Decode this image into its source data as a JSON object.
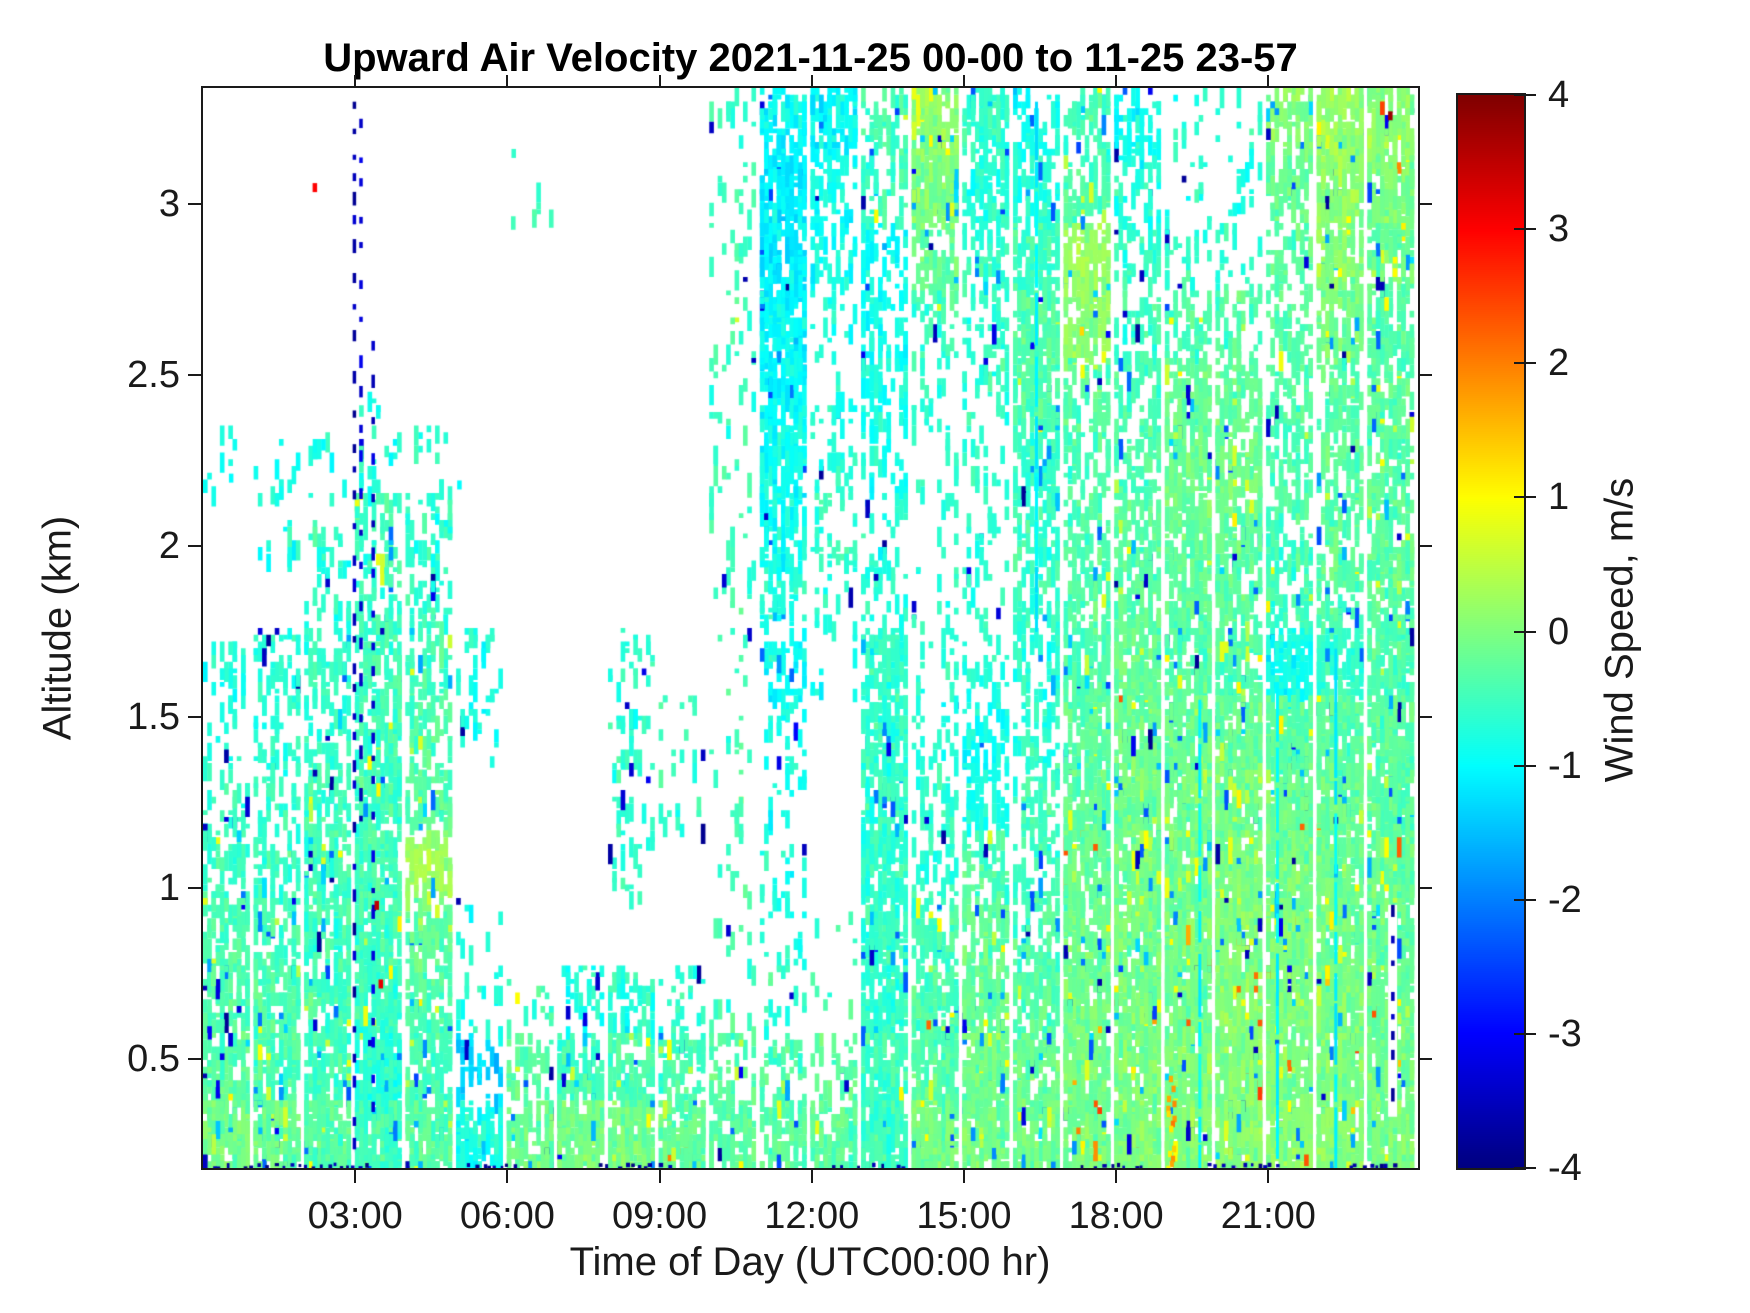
{
  "title": "Upward Air Velocity 2021-11-25 00-00 to 11-25 23-57",
  "x_axis": {
    "label": "Time of Day (UTC00:00 hr)",
    "tick_labels": [
      "03:00",
      "06:00",
      "09:00",
      "12:00",
      "15:00",
      "18:00",
      "21:00"
    ],
    "tick_hours": [
      3,
      6,
      9,
      12,
      15,
      18,
      21
    ],
    "range_hours": [
      0,
      23.95
    ]
  },
  "y_axis": {
    "label": "Altitude (km)",
    "tick_labels": [
      "0.5",
      "1",
      "1.5",
      "2",
      "2.5",
      "3"
    ],
    "tick_values": [
      0.5,
      1,
      1.5,
      2,
      2.5,
      3
    ],
    "range_km": [
      0.18,
      3.34
    ]
  },
  "colorbar": {
    "label": "Wind Speed, m/s",
    "tick_labels": [
      "4",
      "3",
      "2",
      "1",
      "0",
      "-1",
      "-2",
      "-3",
      "-4"
    ],
    "tick_values": [
      4,
      3,
      2,
      1,
      0,
      -1,
      -2,
      -3,
      -4
    ],
    "range": [
      -4,
      4
    ],
    "colormap": "jet",
    "palette_samples": {
      "plus4_dark_red": "#800000",
      "plus3_red": "#ff0000",
      "plus2_orange": "#ff8000",
      "plus1_yellow": "#ffff00",
      "zero_green": "#80ff80",
      "minus1_cyan": "#00ffff",
      "minus2_blue": "#0080ff",
      "minus3_deep_blue": "#0040ff",
      "minus4_navy": "#000080"
    }
  },
  "figure_style": {
    "background": "#ffffff",
    "axis_color": "#1a1a1a",
    "no_data_color": "#ffffff"
  },
  "chart_data": {
    "type": "heatmap",
    "x_unit": "hour of day (UTC)",
    "y_unit": "altitude (km)",
    "value_unit": "m/s (upward air velocity)",
    "grid_note": "coarse 1-hour x 0.2-km summary of the NaN-masked Doppler pcolor field; coverage_fraction = fraction of pixels with data in each bin, mean_wind_ms = typical wind speed of those pixels",
    "col_start_hours": [
      0,
      1,
      2,
      3,
      4,
      5,
      6,
      7,
      8,
      9,
      10,
      11,
      12,
      13,
      14,
      15,
      16,
      17,
      18,
      19,
      20,
      21,
      22,
      23
    ],
    "row_center_alt_km": [
      3.24,
      3.04,
      2.85,
      2.65,
      2.45,
      2.25,
      2.06,
      1.86,
      1.66,
      1.46,
      1.27,
      1.07,
      0.87,
      0.67,
      0.48,
      0.28
    ],
    "coverage_fraction": [
      [
        0,
        0,
        0,
        0,
        0,
        0,
        0,
        0,
        0,
        0,
        0.07,
        0.5,
        0.55,
        0.3,
        0.8,
        0.55,
        0.35,
        0.3,
        0.3,
        0.06,
        0.06,
        0.5,
        0.85,
        0.8
      ],
      [
        0,
        0,
        0,
        0,
        0,
        0,
        0.04,
        0,
        0,
        0,
        0.07,
        0.75,
        0.3,
        0.3,
        0.75,
        0.45,
        0.4,
        0.35,
        0.25,
        0.08,
        0.08,
        0.4,
        0.8,
        0.75
      ],
      [
        0,
        0,
        0,
        0,
        0,
        0,
        0,
        0,
        0,
        0,
        0.07,
        0.8,
        0.2,
        0.3,
        0.45,
        0.3,
        0.6,
        0.55,
        0.25,
        0.15,
        0.12,
        0.3,
        0.6,
        0.55
      ],
      [
        0,
        0,
        0,
        0,
        0,
        0,
        0,
        0,
        0,
        0,
        0.07,
        0.8,
        0.12,
        0.35,
        0.2,
        0.2,
        0.7,
        0.6,
        0.3,
        0.3,
        0.25,
        0.3,
        0.5,
        0.45
      ],
      [
        0,
        0,
        0,
        0.03,
        0,
        0,
        0,
        0,
        0,
        0,
        0.07,
        0.7,
        0.1,
        0.3,
        0.1,
        0.15,
        0.6,
        0.4,
        0.35,
        0.55,
        0.5,
        0.3,
        0.4,
        0.45
      ],
      [
        0.05,
        0.06,
        0.05,
        0.1,
        0.08,
        0,
        0,
        0,
        0,
        0,
        0.07,
        0.55,
        0.15,
        0.2,
        0.08,
        0.1,
        0.45,
        0.3,
        0.4,
        0.65,
        0.6,
        0.3,
        0.35,
        0.5
      ],
      [
        0,
        0.08,
        0.1,
        0.3,
        0.25,
        0,
        0,
        0,
        0,
        0,
        0.07,
        0.45,
        0.2,
        0.15,
        0.05,
        0.1,
        0.35,
        0.3,
        0.5,
        0.6,
        0.5,
        0.35,
        0.4,
        0.55
      ],
      [
        0,
        0,
        0.15,
        0.3,
        0.25,
        0,
        0,
        0,
        0,
        0,
        0.07,
        0.3,
        0.1,
        0.2,
        0.08,
        0.1,
        0.3,
        0.35,
        0.6,
        0.55,
        0.45,
        0.4,
        0.45,
        0.6
      ],
      [
        0.15,
        0.25,
        0.3,
        0.4,
        0.3,
        0.12,
        0,
        0,
        0.12,
        0,
        0.05,
        0.3,
        0.05,
        0.65,
        0.1,
        0.15,
        0.3,
        0.5,
        0.75,
        0.7,
        0.6,
        0.75,
        0.6,
        0.7
      ],
      [
        0.1,
        0.2,
        0.3,
        0.5,
        0.3,
        0.1,
        0,
        0,
        0.12,
        0.08,
        0.05,
        0.15,
        0,
        0.65,
        0.15,
        0.3,
        0.3,
        0.6,
        0.85,
        0.85,
        0.8,
        0.85,
        0.7,
        0.8
      ],
      [
        0.2,
        0.25,
        0.4,
        0.6,
        0.45,
        0,
        0,
        0,
        0.12,
        0.08,
        0.05,
        0.1,
        0,
        0.65,
        0.2,
        0.4,
        0.35,
        0.7,
        0.9,
        0.9,
        0.9,
        0.9,
        0.85,
        0.85
      ],
      [
        0.3,
        0.3,
        0.5,
        0.7,
        0.5,
        0,
        0,
        0,
        0.12,
        0,
        0.05,
        0.1,
        0,
        0.65,
        0.25,
        0.35,
        0.3,
        0.75,
        0.92,
        0.93,
        0.95,
        0.95,
        0.9,
        0.9
      ],
      [
        0.5,
        0.4,
        0.6,
        0.8,
        0.45,
        0.05,
        0,
        0,
        0,
        0,
        0.05,
        0.1,
        0.03,
        0.65,
        0.4,
        0.5,
        0.35,
        0.8,
        0.95,
        0.95,
        0.97,
        0.97,
        0.95,
        0.9
      ],
      [
        0.6,
        0.5,
        0.6,
        0.85,
        0.4,
        0.1,
        0.08,
        0.2,
        0.3,
        0.15,
        0.05,
        0.1,
        0.03,
        0.65,
        0.6,
        0.7,
        0.5,
        0.85,
        0.95,
        0.95,
        0.97,
        0.97,
        0.95,
        0.9
      ],
      [
        0.7,
        0.6,
        0.7,
        0.9,
        0.5,
        0.25,
        0.3,
        0.55,
        0.6,
        0.45,
        0.25,
        0.3,
        0.2,
        0.65,
        0.8,
        0.85,
        0.6,
        0.9,
        0.95,
        0.97,
        0.97,
        0.97,
        0.95,
        0.92
      ],
      [
        0.85,
        0.8,
        0.9,
        0.95,
        0.8,
        0.55,
        0.6,
        0.8,
        0.85,
        0.8,
        0.6,
        0.55,
        0.5,
        0.85,
        0.9,
        0.9,
        0.85,
        0.95,
        0.97,
        0.97,
        0.97,
        0.97,
        0.95,
        0.95
      ]
    ],
    "mean_wind_ms": [
      [
        null,
        null,
        null,
        null,
        null,
        null,
        null,
        null,
        null,
        null,
        -0.5,
        -1.0,
        -1.0,
        -0.4,
        0.1,
        -0.6,
        -0.8,
        -0.5,
        -0.9,
        -0.7,
        -0.7,
        0.0,
        0.15,
        0.1
      ],
      [
        null,
        null,
        null,
        null,
        null,
        null,
        -0.5,
        null,
        null,
        null,
        -0.5,
        -1.1,
        -0.9,
        -0.5,
        0.0,
        -0.7,
        -0.7,
        -0.4,
        -0.7,
        -0.7,
        -0.7,
        -0.2,
        0.1,
        0.0
      ],
      [
        null,
        null,
        null,
        null,
        null,
        null,
        null,
        null,
        null,
        null,
        -0.5,
        -1.1,
        -0.9,
        -0.9,
        -0.2,
        -0.6,
        -0.5,
        0.2,
        -0.6,
        -0.6,
        -0.6,
        -0.3,
        0.0,
        -0.2
      ],
      [
        null,
        null,
        null,
        null,
        null,
        null,
        null,
        null,
        null,
        null,
        -0.5,
        -1.0,
        -0.8,
        -0.9,
        -0.5,
        -0.6,
        -0.3,
        0.1,
        -0.5,
        -0.4,
        -0.4,
        -0.3,
        -0.1,
        -0.3
      ],
      [
        null,
        null,
        null,
        -0.8,
        null,
        null,
        null,
        null,
        null,
        null,
        -0.5,
        -1.0,
        -0.8,
        -0.8,
        -0.6,
        -0.6,
        -0.4,
        -0.3,
        -0.4,
        -0.2,
        -0.2,
        -0.4,
        -0.3,
        -0.3
      ],
      [
        -0.9,
        -0.9,
        -0.8,
        -0.7,
        -0.7,
        null,
        null,
        null,
        null,
        null,
        -0.5,
        -0.9,
        -0.7,
        -0.8,
        -0.6,
        -0.6,
        -0.6,
        -0.4,
        -0.4,
        -0.15,
        -0.15,
        -0.4,
        -0.3,
        -0.3
      ],
      [
        null,
        -0.8,
        -0.7,
        -0.5,
        -0.6,
        null,
        null,
        null,
        null,
        null,
        -0.5,
        -0.9,
        -0.6,
        -0.7,
        -0.6,
        -0.6,
        -0.6,
        -0.4,
        -0.3,
        -0.2,
        -0.25,
        -0.45,
        -0.3,
        -0.3
      ],
      [
        null,
        null,
        -0.7,
        -0.5,
        -0.6,
        null,
        null,
        null,
        null,
        null,
        -0.5,
        -0.8,
        -0.7,
        -0.7,
        -0.6,
        -0.6,
        -0.6,
        -0.4,
        -0.3,
        -0.3,
        -0.3,
        -0.5,
        -0.35,
        -0.3
      ],
      [
        -0.8,
        -0.7,
        -0.6,
        -0.5,
        -0.5,
        -0.8,
        null,
        null,
        -0.6,
        null,
        -0.5,
        -0.9,
        -0.8,
        -0.6,
        -0.7,
        -0.7,
        -0.7,
        -0.4,
        -0.2,
        -0.3,
        -0.4,
        -0.9,
        -0.6,
        -0.4
      ],
      [
        -0.7,
        -0.7,
        -0.6,
        -0.5,
        -0.4,
        -0.8,
        null,
        null,
        -0.6,
        -0.6,
        -0.5,
        -0.8,
        null,
        -0.6,
        -0.7,
        -0.9,
        -0.7,
        -0.3,
        -0.15,
        -0.2,
        -0.2,
        -0.3,
        -0.3,
        -0.3
      ],
      [
        -0.6,
        -0.6,
        -0.55,
        -0.5,
        -0.3,
        null,
        null,
        null,
        -0.6,
        -0.6,
        -0.5,
        -0.8,
        null,
        -0.6,
        -0.6,
        -0.8,
        -0.5,
        -0.25,
        -0.1,
        -0.15,
        -0.1,
        -0.15,
        -0.2,
        -0.3
      ],
      [
        -0.5,
        -0.5,
        -0.5,
        -0.45,
        0.25,
        null,
        null,
        null,
        -0.6,
        null,
        -0.5,
        -0.8,
        null,
        -0.6,
        -0.6,
        -0.4,
        -0.5,
        -0.2,
        -0.1,
        -0.1,
        -0.05,
        -0.1,
        -0.15,
        -0.2
      ],
      [
        -0.4,
        -0.45,
        -0.5,
        -0.5,
        -0.2,
        -0.8,
        null,
        null,
        null,
        null,
        -0.5,
        -0.8,
        -0.5,
        -0.6,
        -0.5,
        -0.3,
        -0.4,
        -0.15,
        -0.1,
        -0.1,
        0.0,
        0.0,
        -0.1,
        -0.2
      ],
      [
        -0.35,
        -0.4,
        -0.45,
        -0.55,
        -0.4,
        -0.7,
        -0.5,
        -0.8,
        -0.7,
        -0.6,
        -0.5,
        -0.6,
        -0.5,
        -0.6,
        -0.4,
        -0.2,
        -0.3,
        -0.1,
        -0.05,
        -0.1,
        0.0,
        0.0,
        -0.05,
        -0.15
      ],
      [
        -0.3,
        -0.4,
        -0.5,
        -0.7,
        -0.45,
        -1.3,
        -0.3,
        -0.5,
        -0.4,
        -0.45,
        -0.35,
        -0.4,
        -0.3,
        -0.55,
        -0.3,
        -0.15,
        -0.2,
        -0.1,
        -0.05,
        -0.05,
        0.0,
        0.0,
        0.0,
        -0.1
      ],
      [
        -0.1,
        -0.2,
        -0.3,
        -0.5,
        -0.3,
        -0.8,
        -0.2,
        -0.1,
        -0.1,
        -0.2,
        -0.3,
        -0.3,
        -0.3,
        -0.5,
        -0.1,
        -0.1,
        -0.1,
        -0.05,
        0.0,
        0.0,
        0.05,
        0.05,
        0.0,
        -0.05
      ]
    ],
    "features": [
      {
        "type": "navy_dash_column",
        "t": 2.95,
        "alt_min": 0.2,
        "alt_max": 3.3,
        "value": -3.6
      },
      {
        "type": "navy_dash_column",
        "t": 3.08,
        "alt_min": 1.2,
        "alt_max": 3.25,
        "value": -3.4
      },
      {
        "type": "navy_dash_column",
        "t": 3.32,
        "alt_min": 0.35,
        "alt_max": 2.6,
        "value": -3.4
      },
      {
        "type": "navy_dash_column",
        "t": 23.42,
        "alt_min": 0.33,
        "alt_max": 0.95,
        "value": -3.6,
        "white_gap": true
      },
      {
        "type": "cyan_streak",
        "t": 16.4,
        "alt_min": 1.76,
        "alt_max": 3.3,
        "value": -1.1
      },
      {
        "type": "cyan_streak",
        "t": 19.62,
        "alt_min": 0.2,
        "alt_max": 1.55,
        "value": -1.0
      },
      {
        "type": "cyan_streak",
        "t": 21.15,
        "alt_min": 0.2,
        "alt_max": 1.6,
        "value": -1.0
      },
      {
        "type": "cyan_streak",
        "t": 22.3,
        "alt_min": 0.3,
        "alt_max": 1.7,
        "value": -1.1
      },
      {
        "type": "warm_column",
        "t": 19.05,
        "alt_min": 0.18,
        "alt_max": 0.45,
        "value": 1.6
      },
      {
        "type": "speck",
        "t": 3.42,
        "alt": 0.95,
        "value": 3.5
      },
      {
        "type": "speck",
        "t": 3.5,
        "alt": 0.72,
        "value": 3.2
      },
      {
        "type": "speck",
        "t": 2.2,
        "alt": 3.05,
        "value": 3.0
      },
      {
        "type": "speck",
        "t": 6.12,
        "alt": 3.15,
        "value": -0.6
      },
      {
        "type": "speck",
        "t": 0.55,
        "alt": 2.2,
        "value": -1.0
      },
      {
        "type": "speck",
        "t": 5.05,
        "alt": 2.18,
        "value": -1.0
      },
      {
        "type": "speck",
        "t": 14.3,
        "alt": 0.6,
        "value": 2.2
      },
      {
        "type": "speck",
        "t": 17.32,
        "alt": 2.63,
        "value": 1.3
      },
      {
        "type": "speck",
        "t": 23.4,
        "alt": 3.26,
        "value": 3.8
      },
      {
        "type": "bottom_dot_row",
        "alt": 0.19,
        "value": -3.5,
        "segments_hours": [
          [
            0.2,
            3.2
          ],
          [
            5.2,
            6.2
          ],
          [
            7.8,
            9.3
          ],
          [
            12.4,
            14.3
          ],
          [
            17.3,
            18.5
          ],
          [
            19.8,
            21.3
          ],
          [
            22.6,
            23.6
          ]
        ]
      }
    ]
  }
}
